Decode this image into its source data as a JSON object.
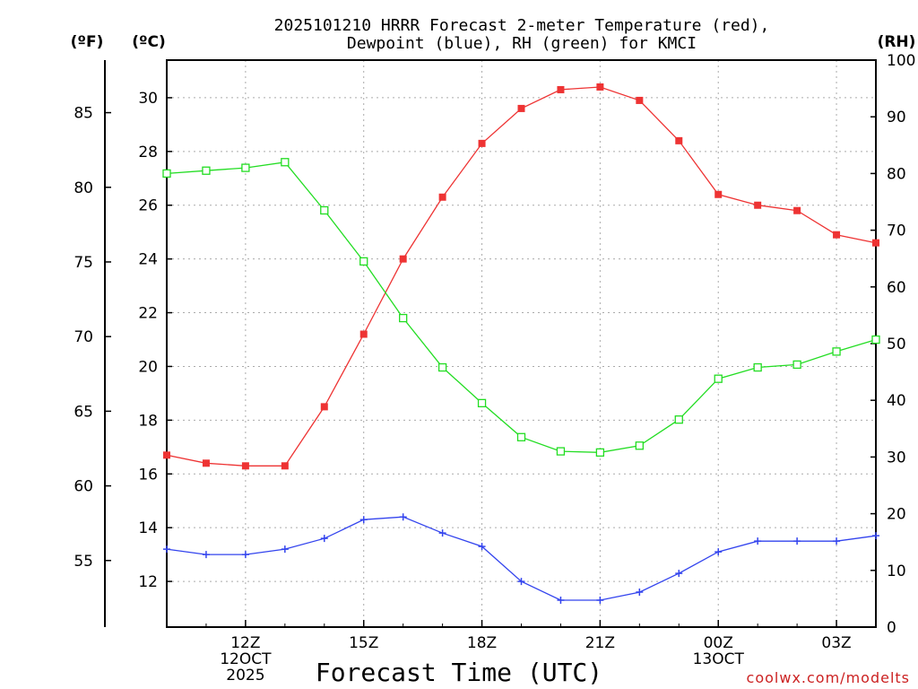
{
  "chart_data": {
    "type": "line",
    "title_line1": "2025101210 HRRR Forecast 2-meter Temperature (red),",
    "title_line2": "Dewpoint (blue), RH (green) for KMCI",
    "xlabel": "Forecast Time (UTC)",
    "credit": "coolwx.com/modelts",
    "units": {
      "f": "(ºF)",
      "c": "(ºC)",
      "rh": "(RH)"
    },
    "x_hours": [
      10,
      11,
      12,
      13,
      14,
      15,
      16,
      17,
      18,
      19,
      20,
      21,
      22,
      23,
      24,
      25,
      26,
      27,
      28
    ],
    "x_ticks": [
      {
        "hour": 12,
        "lines": [
          "12Z",
          "12OCT",
          "2025"
        ]
      },
      {
        "hour": 15,
        "lines": [
          "15Z"
        ]
      },
      {
        "hour": 18,
        "lines": [
          "18Z"
        ]
      },
      {
        "hour": 21,
        "lines": [
          "21Z"
        ]
      },
      {
        "hour": 24,
        "lines": [
          "00Z",
          "13OCT"
        ]
      },
      {
        "hour": 27,
        "lines": [
          "03Z"
        ]
      }
    ],
    "ylim_c": [
      10.3,
      31.4
    ],
    "ylim_rh": [
      0,
      100
    ],
    "f_ticks": [
      55,
      60,
      65,
      70,
      75,
      80,
      85
    ],
    "c_ticks": [
      12,
      14,
      16,
      18,
      20,
      22,
      24,
      26,
      28,
      30
    ],
    "rh_ticks": [
      0,
      10,
      20,
      30,
      40,
      50,
      60,
      70,
      80,
      90,
      100
    ],
    "series": [
      {
        "name": "Temperature",
        "color": "#ee3333",
        "marker": "filled-square",
        "axis": "c",
        "values": [
          16.7,
          16.4,
          16.3,
          16.3,
          18.5,
          21.2,
          24.0,
          26.3,
          28.3,
          29.6,
          30.3,
          30.4,
          29.9,
          28.4,
          26.4,
          26.0,
          25.8,
          24.9,
          24.6
        ]
      },
      {
        "name": "Dewpoint",
        "color": "#3344ee",
        "marker": "plus",
        "axis": "c",
        "values": [
          13.2,
          13.0,
          13.0,
          13.2,
          13.6,
          14.3,
          14.4,
          13.8,
          13.3,
          12.0,
          11.3,
          11.3,
          11.6,
          12.3,
          13.1,
          13.5,
          13.5,
          13.5,
          13.7
        ]
      },
      {
        "name": "RH",
        "color": "#22dd22",
        "marker": "open-square",
        "axis": "rh",
        "values": [
          80.0,
          80.5,
          81.0,
          82.0,
          73.5,
          64.5,
          54.5,
          45.8,
          39.5,
          33.5,
          31.0,
          30.8,
          32.0,
          36.6,
          43.8,
          45.8,
          46.3,
          48.6,
          50.7
        ]
      }
    ]
  }
}
